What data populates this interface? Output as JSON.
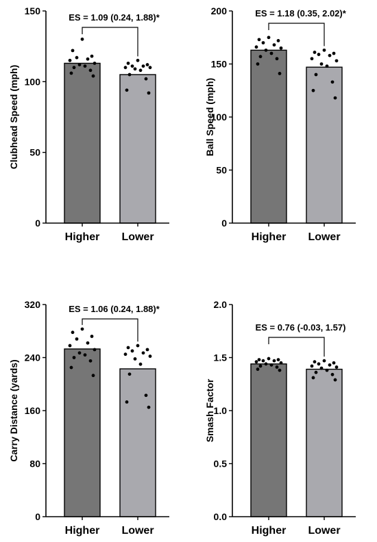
{
  "colors": {
    "higher_bar": "#767676",
    "lower_bar": "#a9a9ae",
    "axis": "#000000",
    "dots": "#000000"
  },
  "chart_data": [
    {
      "type": "bar",
      "ylabel": "Clubhead Speed (mph)",
      "ylim": [
        0,
        150
      ],
      "yticks": [
        0,
        50,
        100,
        150
      ],
      "ytick_labels": [
        "0",
        "50",
        "100",
        "150"
      ],
      "categories": [
        "Higher",
        "Lower"
      ],
      "values": [
        113,
        105
      ],
      "points": [
        [
          130,
          122,
          118,
          117,
          116,
          115,
          113,
          112,
          111,
          110,
          108,
          106,
          104
        ],
        [
          115,
          113,
          112,
          111,
          111,
          110,
          110,
          109,
          108,
          105,
          102,
          94,
          92
        ]
      ],
      "annotation": "ES = 1.09 (0.24, 1.88)*"
    },
    {
      "type": "bar",
      "ylabel": "Ball Speed (mph)",
      "ylim": [
        0,
        200
      ],
      "yticks": [
        0,
        50,
        100,
        150,
        200
      ],
      "ytick_labels": [
        "0",
        "50",
        "100",
        "150",
        "200"
      ],
      "categories": [
        "Higher",
        "Lower"
      ],
      "values": [
        163,
        147
      ],
      "points": [
        [
          175,
          173,
          172,
          170,
          168,
          166,
          165,
          163,
          160,
          157,
          155,
          150,
          141
        ],
        [
          163,
          161,
          160,
          159,
          158,
          155,
          153,
          150,
          148,
          140,
          133,
          125,
          118
        ]
      ],
      "annotation": "ES = 1.18 (0.35, 2.02)*"
    },
    {
      "type": "bar",
      "ylabel": "Carry Distance (yards)",
      "ylim": [
        0,
        320
      ],
      "yticks": [
        0,
        80,
        160,
        240,
        320
      ],
      "ytick_labels": [
        "0",
        "80",
        "160",
        "240",
        "320"
      ],
      "categories": [
        "Higher",
        "Lower"
      ],
      "values": [
        253,
        223
      ],
      "points": [
        [
          283,
          278,
          272,
          268,
          262,
          258,
          252,
          247,
          244,
          240,
          235,
          225,
          213
        ],
        [
          258,
          255,
          252,
          250,
          247,
          245,
          242,
          238,
          230,
          215,
          183,
          173,
          165
        ]
      ],
      "annotation": "ES = 1.06 (0.24, 1.88)*"
    },
    {
      "type": "bar",
      "ylabel": "Smash Factor",
      "ylim": [
        0,
        2.0
      ],
      "yticks": [
        0,
        0.5,
        1.0,
        1.5,
        2.0
      ],
      "ytick_labels": [
        "0.0",
        "0.5",
        "1.0",
        "1.5",
        "2.0"
      ],
      "categories": [
        "Higher",
        "Lower"
      ],
      "values": [
        1.44,
        1.39
      ],
      "points": [
        [
          1.49,
          1.48,
          1.48,
          1.47,
          1.47,
          1.46,
          1.45,
          1.44,
          1.43,
          1.42,
          1.41,
          1.39,
          1.38
        ],
        [
          1.47,
          1.46,
          1.45,
          1.44,
          1.43,
          1.42,
          1.41,
          1.4,
          1.38,
          1.36,
          1.34,
          1.31,
          1.29
        ]
      ],
      "annotation": "ES = 0.76 (-0.03, 1.57)"
    }
  ]
}
